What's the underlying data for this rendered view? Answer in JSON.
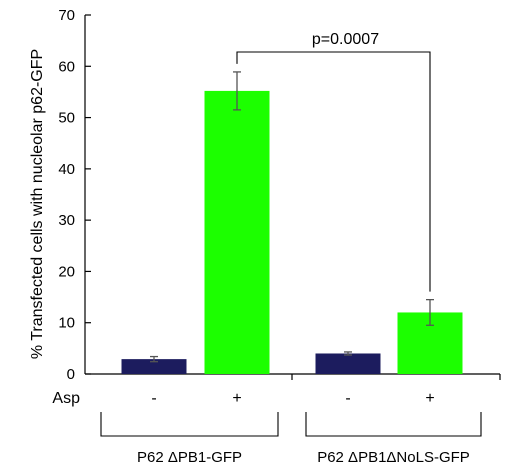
{
  "chart_data": {
    "type": "bar",
    "ylabel": "% Transfected cells with nucleolar p62-GFP",
    "ylim": [
      0,
      70
    ],
    "yticks": [
      0,
      10,
      20,
      30,
      40,
      50,
      60,
      70
    ],
    "grid": false,
    "legend": "none",
    "treatment_label": "Asp",
    "groups": [
      {
        "label": "P62 ΔPB1-GFP",
        "bars": [
          {
            "treatment": "-",
            "value": 2.9,
            "error": 0.5,
            "color": "#1c1c5e"
          },
          {
            "treatment": "+",
            "value": 55.2,
            "error": 3.7,
            "color": "#1cff00"
          }
        ]
      },
      {
        "label": "P62 ΔPB1ΔNoLS-GFP",
        "bars": [
          {
            "treatment": "-",
            "value": 4.0,
            "error": 0.3,
            "color": "#1c1c5e"
          },
          {
            "treatment": "+",
            "value": 12.0,
            "error": 2.5,
            "color": "#1cff00"
          }
        ]
      }
    ],
    "annotation": {
      "text": "p=0.0007",
      "from_bar": [
        0,
        1
      ],
      "to_bar": [
        1,
        1
      ]
    }
  }
}
